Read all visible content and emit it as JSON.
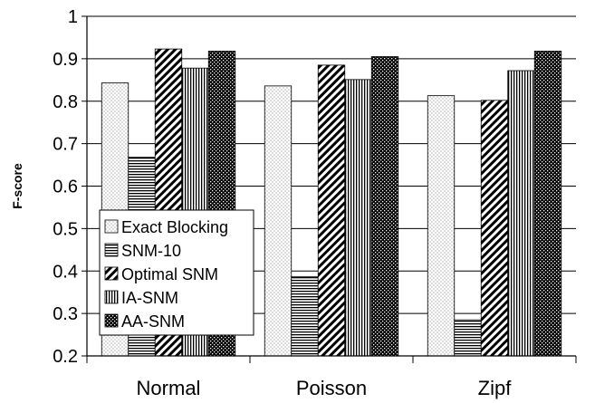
{
  "chart_data": {
    "type": "bar",
    "title": "",
    "xlabel": "",
    "ylabel": "F-score",
    "ylim": [
      0.2,
      1
    ],
    "yticks": [
      "0.2",
      "0.3",
      "0.4",
      "0.5",
      "0.6",
      "0.7",
      "0.8",
      "0.9",
      "1"
    ],
    "categories": [
      "Normal",
      "Poisson",
      "Zipf"
    ],
    "series": [
      {
        "name": "Exact Blocking",
        "pattern": "dots",
        "values": [
          0.843,
          0.836,
          0.813
        ]
      },
      {
        "name": "SNM-10",
        "pattern": "hlines",
        "values": [
          0.668,
          0.387,
          0.285
        ]
      },
      {
        "name": "Optimal SNM",
        "pattern": "diag",
        "values": [
          0.923,
          0.885,
          0.802
        ]
      },
      {
        "name": "IA-SNM",
        "pattern": "vlines",
        "values": [
          0.878,
          0.851,
          0.872
        ]
      },
      {
        "name": "AA-SNM",
        "pattern": "check",
        "values": [
          0.918,
          0.905,
          0.918
        ]
      }
    ],
    "grid": "horizontal",
    "legend_position": "bottom-left inside plot"
  }
}
